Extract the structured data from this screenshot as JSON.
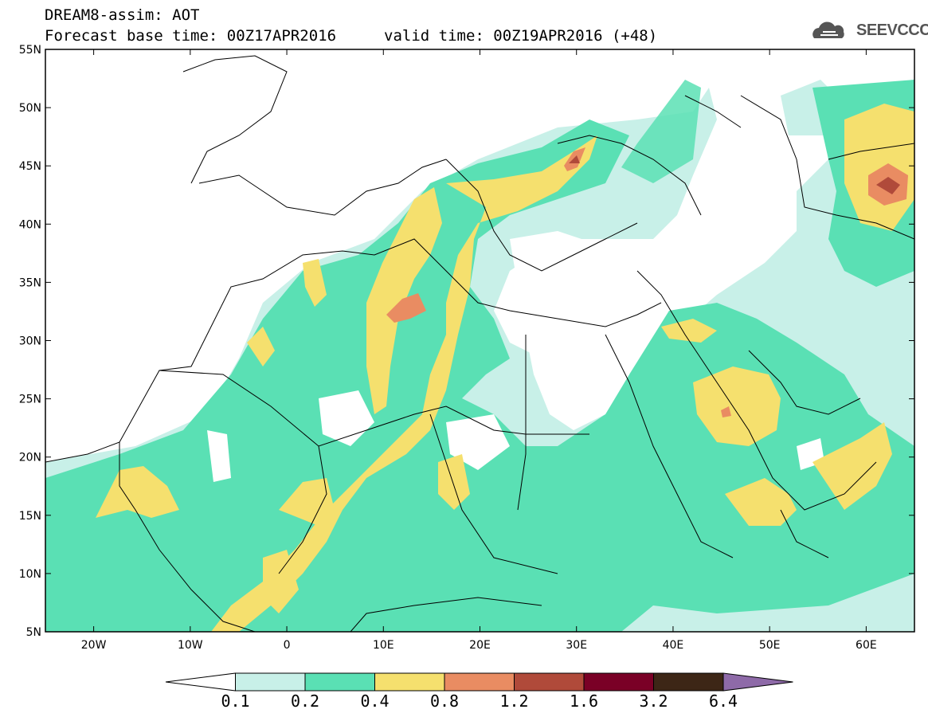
{
  "title": {
    "line1": "DREAM8-assim: AOT",
    "line2": "Forecast base time: 00Z17APR2016",
    "line3": "valid time: 00Z19APR2016 (+48)"
  },
  "logo": {
    "text": "SEEVCCC"
  },
  "map": {
    "projection": "equirectangular",
    "lon_range": [
      -25,
      65
    ],
    "lat_range": [
      5,
      55
    ],
    "lat_ticks": [
      "55N",
      "50N",
      "45N",
      "40N",
      "35N",
      "30N",
      "25N",
      "20N",
      "15N",
      "10N",
      "5N"
    ],
    "lon_ticks": [
      "20W",
      "10W",
      "0",
      "10E",
      "20E",
      "30E",
      "40E",
      "50E",
      "60E"
    ],
    "field": "aerosol optical thickness"
  },
  "colorbar": {
    "levels": [
      "0.1",
      "0.2",
      "0.4",
      "0.8",
      "1.2",
      "1.6",
      "3.2",
      "6.4"
    ],
    "colors": [
      "#ffffff",
      "#c8f0e8",
      "#5ae0b4",
      "#f5e06e",
      "#e98c62",
      "#b04a3a",
      "#7a0026",
      "#3d2616",
      "#8e6aa8"
    ]
  }
}
